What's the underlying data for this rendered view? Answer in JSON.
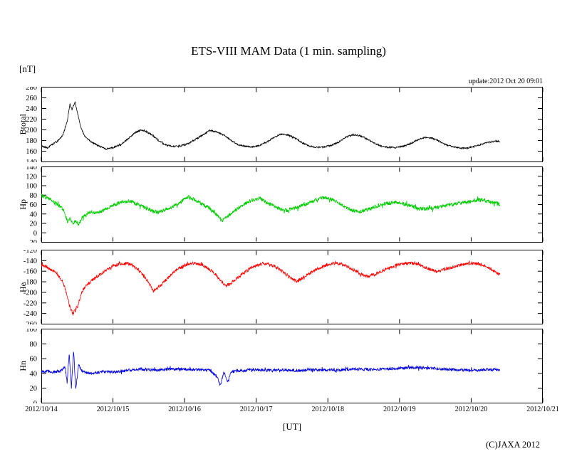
{
  "page": {
    "title": "ETS-VIII MAM Data (1 min. sampling)",
    "unit_label": "[nT]",
    "update_text": "update:2012 Oct 20 09:01",
    "xaxis_label": "[UT]",
    "copyright": "(C)JAXA 2012"
  },
  "chart_data": {
    "type": "line",
    "title": "ETS-VIII MAM Data (1 min. sampling)",
    "xlabel": "[UT]",
    "x_unit": "days since 2012/10/14 00:00 UT",
    "x_range": [
      0,
      7
    ],
    "x_tick_labels": [
      "2012/10/14",
      "2012/10/15",
      "2012/10/16",
      "2012/10/17",
      "2012/10/18",
      "2012/10/19",
      "2012/10/20",
      "2012/10/21"
    ],
    "grid": false,
    "legend": "none",
    "panels": [
      {
        "ylabel": "Btotal",
        "color": "#000000",
        "ylim": [
          140,
          280
        ],
        "yticks": [
          140,
          160,
          180,
          200,
          220,
          240,
          260,
          280
        ],
        "noise": 1.5,
        "points": [
          [
            0,
            170
          ],
          [
            0.08,
            166
          ],
          [
            0.15,
            172
          ],
          [
            0.22,
            178
          ],
          [
            0.3,
            190
          ],
          [
            0.36,
            215
          ],
          [
            0.4,
            248
          ],
          [
            0.43,
            238
          ],
          [
            0.47,
            252
          ],
          [
            0.5,
            235
          ],
          [
            0.55,
            205
          ],
          [
            0.6,
            190
          ],
          [
            0.65,
            182
          ],
          [
            0.72,
            176
          ],
          [
            0.8,
            170
          ],
          [
            0.9,
            164
          ],
          [
            1.0,
            167
          ],
          [
            1.1,
            172
          ],
          [
            1.2,
            182
          ],
          [
            1.3,
            194
          ],
          [
            1.4,
            200
          ],
          [
            1.45,
            198
          ],
          [
            1.55,
            190
          ],
          [
            1.65,
            178
          ],
          [
            1.75,
            171
          ],
          [
            1.85,
            169
          ],
          [
            1.95,
            170
          ],
          [
            2.05,
            174
          ],
          [
            2.15,
            182
          ],
          [
            2.25,
            190
          ],
          [
            2.35,
            199
          ],
          [
            2.45,
            196
          ],
          [
            2.55,
            190
          ],
          [
            2.65,
            180
          ],
          [
            2.75,
            172
          ],
          [
            2.85,
            169
          ],
          [
            2.95,
            168
          ],
          [
            3.05,
            171
          ],
          [
            3.15,
            177
          ],
          [
            3.25,
            186
          ],
          [
            3.35,
            192
          ],
          [
            3.45,
            190
          ],
          [
            3.55,
            184
          ],
          [
            3.65,
            175
          ],
          [
            3.75,
            169
          ],
          [
            3.85,
            167
          ],
          [
            3.95,
            168
          ],
          [
            4.05,
            171
          ],
          [
            4.15,
            177
          ],
          [
            4.25,
            186
          ],
          [
            4.35,
            191
          ],
          [
            4.45,
            189
          ],
          [
            4.55,
            183
          ],
          [
            4.65,
            175
          ],
          [
            4.75,
            169
          ],
          [
            4.85,
            167
          ],
          [
            4.95,
            167
          ],
          [
            5.05,
            169
          ],
          [
            5.15,
            174
          ],
          [
            5.25,
            181
          ],
          [
            5.35,
            186
          ],
          [
            5.45,
            185
          ],
          [
            5.55,
            179
          ],
          [
            5.65,
            172
          ],
          [
            5.75,
            168
          ],
          [
            5.85,
            166
          ],
          [
            5.95,
            166
          ],
          [
            6.05,
            169
          ],
          [
            6.15,
            173
          ],
          [
            6.25,
            177
          ],
          [
            6.35,
            179
          ],
          [
            6.4,
            178
          ]
        ]
      },
      {
        "ylabel": "Hp",
        "color": "#00cc00",
        "ylim": [
          -20,
          140
        ],
        "yticks": [
          -20,
          0,
          20,
          40,
          60,
          80,
          100,
          120,
          140
        ],
        "noise": 4,
        "points": [
          [
            0,
            79
          ],
          [
            0.08,
            74
          ],
          [
            0.15,
            68
          ],
          [
            0.22,
            60
          ],
          [
            0.28,
            55
          ],
          [
            0.33,
            40
          ],
          [
            0.37,
            22
          ],
          [
            0.4,
            30
          ],
          [
            0.44,
            18
          ],
          [
            0.48,
            28
          ],
          [
            0.52,
            16
          ],
          [
            0.56,
            30
          ],
          [
            0.62,
            40
          ],
          [
            0.7,
            44
          ],
          [
            0.78,
            42
          ],
          [
            0.85,
            46
          ],
          [
            0.95,
            55
          ],
          [
            1.05,
            62
          ],
          [
            1.15,
            66
          ],
          [
            1.25,
            67
          ],
          [
            1.35,
            60
          ],
          [
            1.45,
            54
          ],
          [
            1.55,
            47
          ],
          [
            1.62,
            43
          ],
          [
            1.7,
            48
          ],
          [
            1.8,
            54
          ],
          [
            1.9,
            60
          ],
          [
            2.0,
            72
          ],
          [
            2.05,
            76
          ],
          [
            2.15,
            70
          ],
          [
            2.25,
            60
          ],
          [
            2.35,
            52
          ],
          [
            2.45,
            38
          ],
          [
            2.52,
            26
          ],
          [
            2.58,
            32
          ],
          [
            2.65,
            42
          ],
          [
            2.75,
            52
          ],
          [
            2.85,
            62
          ],
          [
            2.95,
            70
          ],
          [
            3.05,
            73
          ],
          [
            3.15,
            64
          ],
          [
            3.25,
            56
          ],
          [
            3.35,
            50
          ],
          [
            3.45,
            47
          ],
          [
            3.55,
            53
          ],
          [
            3.65,
            58
          ],
          [
            3.75,
            64
          ],
          [
            3.85,
            71
          ],
          [
            3.95,
            75
          ],
          [
            4.05,
            71
          ],
          [
            4.15,
            63
          ],
          [
            4.25,
            54
          ],
          [
            4.35,
            47
          ],
          [
            4.45,
            45
          ],
          [
            4.55,
            49
          ],
          [
            4.65,
            55
          ],
          [
            4.75,
            60
          ],
          [
            4.85,
            63
          ],
          [
            4.95,
            65
          ],
          [
            5.05,
            62
          ],
          [
            5.15,
            57
          ],
          [
            5.25,
            53
          ],
          [
            5.35,
            51
          ],
          [
            5.45,
            52
          ],
          [
            5.55,
            55
          ],
          [
            5.65,
            58
          ],
          [
            5.75,
            60
          ],
          [
            5.85,
            63
          ],
          [
            5.95,
            66
          ],
          [
            6.05,
            69
          ],
          [
            6.15,
            70
          ],
          [
            6.25,
            67
          ],
          [
            6.35,
            62
          ],
          [
            6.4,
            61
          ]
        ]
      },
      {
        "ylabel": "He",
        "color": "#ff0000",
        "ylim": [
          -260,
          -120
        ],
        "yticks": [
          -260,
          -240,
          -220,
          -200,
          -180,
          -160,
          -140,
          -120
        ],
        "noise": 3,
        "points": [
          [
            0,
            -148
          ],
          [
            0.08,
            -152
          ],
          [
            0.15,
            -158
          ],
          [
            0.22,
            -165
          ],
          [
            0.3,
            -180
          ],
          [
            0.36,
            -205
          ],
          [
            0.4,
            -228
          ],
          [
            0.44,
            -240
          ],
          [
            0.48,
            -232
          ],
          [
            0.52,
            -222
          ],
          [
            0.56,
            -200
          ],
          [
            0.62,
            -188
          ],
          [
            0.7,
            -178
          ],
          [
            0.8,
            -168
          ],
          [
            0.9,
            -158
          ],
          [
            1.0,
            -150
          ],
          [
            1.1,
            -146
          ],
          [
            1.2,
            -145
          ],
          [
            1.3,
            -150
          ],
          [
            1.4,
            -163
          ],
          [
            1.5,
            -182
          ],
          [
            1.56,
            -198
          ],
          [
            1.62,
            -192
          ],
          [
            1.7,
            -182
          ],
          [
            1.8,
            -168
          ],
          [
            1.9,
            -156
          ],
          [
            2.0,
            -149
          ],
          [
            2.1,
            -145
          ],
          [
            2.2,
            -146
          ],
          [
            2.3,
            -152
          ],
          [
            2.4,
            -162
          ],
          [
            2.5,
            -176
          ],
          [
            2.57,
            -188
          ],
          [
            2.63,
            -184
          ],
          [
            2.7,
            -177
          ],
          [
            2.8,
            -166
          ],
          [
            2.9,
            -156
          ],
          [
            3.0,
            -149
          ],
          [
            3.1,
            -145
          ],
          [
            3.2,
            -147
          ],
          [
            3.3,
            -154
          ],
          [
            3.4,
            -164
          ],
          [
            3.5,
            -175
          ],
          [
            3.56,
            -179
          ],
          [
            3.62,
            -175
          ],
          [
            3.7,
            -168
          ],
          [
            3.8,
            -160
          ],
          [
            3.9,
            -152
          ],
          [
            4.0,
            -147
          ],
          [
            4.1,
            -145
          ],
          [
            4.2,
            -147
          ],
          [
            4.3,
            -153
          ],
          [
            4.4,
            -161
          ],
          [
            4.5,
            -168
          ],
          [
            4.56,
            -170
          ],
          [
            4.65,
            -166
          ],
          [
            4.75,
            -160
          ],
          [
            4.85,
            -154
          ],
          [
            4.95,
            -149
          ],
          [
            5.05,
            -146
          ],
          [
            5.15,
            -145
          ],
          [
            5.25,
            -147
          ],
          [
            5.35,
            -152
          ],
          [
            5.45,
            -158
          ],
          [
            5.52,
            -161
          ],
          [
            5.6,
            -158
          ],
          [
            5.7,
            -154
          ],
          [
            5.8,
            -150
          ],
          [
            5.9,
            -147
          ],
          [
            6.0,
            -145
          ],
          [
            6.1,
            -146
          ],
          [
            6.2,
            -151
          ],
          [
            6.3,
            -158
          ],
          [
            6.4,
            -166
          ]
        ]
      },
      {
        "ylabel": "Hn",
        "color": "#0000dd",
        "ylim": [
          0,
          100
        ],
        "yticks": [
          0,
          20,
          40,
          60,
          80,
          100
        ],
        "noise": 2,
        "points": [
          [
            0,
            42
          ],
          [
            0.1,
            43
          ],
          [
            0.2,
            42
          ],
          [
            0.28,
            44
          ],
          [
            0.33,
            50
          ],
          [
            0.36,
            28
          ],
          [
            0.39,
            68
          ],
          [
            0.42,
            20
          ],
          [
            0.45,
            72
          ],
          [
            0.48,
            18
          ],
          [
            0.52,
            52
          ],
          [
            0.56,
            44
          ],
          [
            0.62,
            41
          ],
          [
            0.72,
            40
          ],
          [
            0.85,
            42
          ],
          [
            1.0,
            42
          ],
          [
            1.2,
            44
          ],
          [
            1.4,
            46
          ],
          [
            1.6,
            44
          ],
          [
            1.8,
            46
          ],
          [
            2.0,
            46
          ],
          [
            2.2,
            45
          ],
          [
            2.35,
            44
          ],
          [
            2.45,
            36
          ],
          [
            2.5,
            24
          ],
          [
            2.55,
            42
          ],
          [
            2.6,
            28
          ],
          [
            2.65,
            42
          ],
          [
            2.8,
            44
          ],
          [
            3.0,
            45
          ],
          [
            3.2,
            44
          ],
          [
            3.4,
            45
          ],
          [
            3.6,
            44
          ],
          [
            3.8,
            45
          ],
          [
            4.0,
            44
          ],
          [
            4.2,
            45
          ],
          [
            4.4,
            46
          ],
          [
            4.6,
            45
          ],
          [
            4.8,
            46
          ],
          [
            5.0,
            47
          ],
          [
            5.2,
            48
          ],
          [
            5.4,
            47
          ],
          [
            5.6,
            46
          ],
          [
            5.8,
            45
          ],
          [
            6.0,
            44
          ],
          [
            6.2,
            45
          ],
          [
            6.4,
            45
          ]
        ]
      }
    ]
  }
}
